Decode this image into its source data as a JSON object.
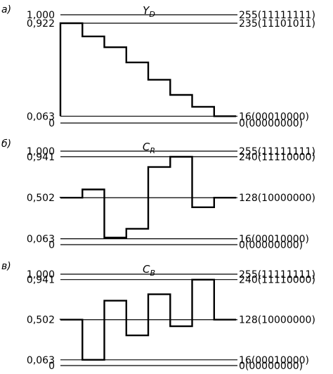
{
  "chart_data": [
    {
      "type": "line",
      "step": true,
      "panel_label": "а)",
      "title": "Y",
      "title_sub": "D",
      "levels": [
        {
          "value": 1.0,
          "left_label": "1,000",
          "right_label": "255(11111111)"
        },
        {
          "value": 0.922,
          "left_label": "0,922",
          "right_label": "235(11101011)"
        },
        {
          "value": 0.063,
          "left_label": "0,063",
          "right_label": "16(00010000)"
        },
        {
          "value": 0.0,
          "left_label": "0",
          "right_label": "0(00000000)"
        }
      ],
      "values": [
        0.922,
        0.8,
        0.7,
        0.56,
        0.4,
        0.26,
        0.15,
        0.063
      ]
    },
    {
      "type": "line",
      "step": true,
      "panel_label": "б)",
      "title": "C",
      "title_sub": "R",
      "levels": [
        {
          "value": 1.0,
          "left_label": "1,000",
          "right_label": "255(11111111)"
        },
        {
          "value": 0.941,
          "left_label": "0,941",
          "right_label": "240(11110000)"
        },
        {
          "value": 0.502,
          "left_label": "0,502",
          "right_label": "128(10000000)"
        },
        {
          "value": 0.063,
          "left_label": "0,063",
          "right_label": "16(00010000)"
        },
        {
          "value": 0.0,
          "left_label": "0",
          "right_label": "0(00000000)"
        }
      ],
      "values": [
        0.502,
        0.59,
        0.075,
        0.17,
        0.83,
        0.94,
        0.4,
        0.502
      ]
    },
    {
      "type": "line",
      "step": true,
      "panel_label": "в)",
      "title": "C",
      "title_sub": "B",
      "levels": [
        {
          "value": 1.0,
          "left_label": "1,000",
          "right_label": "255(11111111)"
        },
        {
          "value": 0.941,
          "left_label": "0,941",
          "right_label": "240(11110000)"
        },
        {
          "value": 0.502,
          "left_label": "0,502",
          "right_label": "128(10000000)"
        },
        {
          "value": 0.063,
          "left_label": "0,063",
          "right_label": "16(00010000)"
        },
        {
          "value": 0.0,
          "left_label": "0",
          "right_label": "0(00000000)"
        }
      ],
      "values": [
        0.502,
        0.063,
        0.71,
        0.33,
        0.78,
        0.43,
        0.94,
        0.502
      ]
    }
  ]
}
